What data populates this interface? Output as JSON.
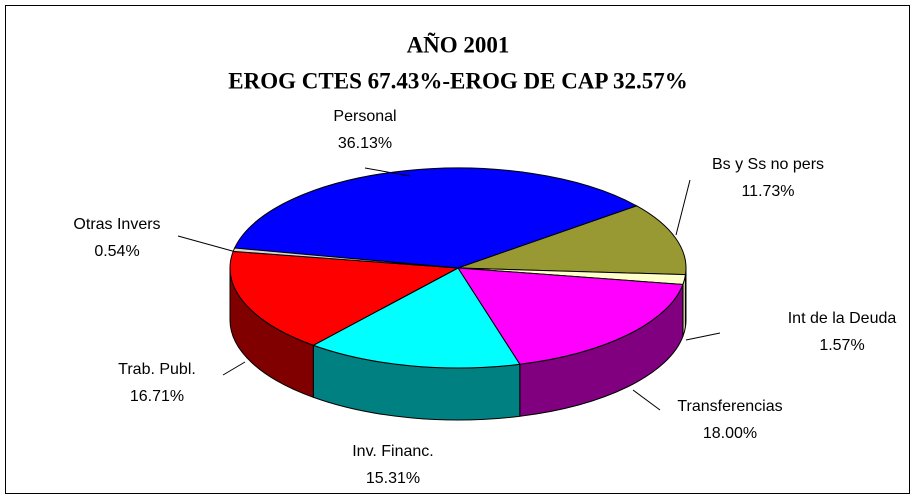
{
  "chart_data": {
    "type": "pie3d",
    "title": "AÑO 2001",
    "subtitle": "EROG CTES 67.43%-EROG DE CAP 32.57%",
    "categories": [
      "Personal",
      "Bs y Ss no pers",
      "Int de la Deuda",
      "Transferencias",
      "Inv. Financ.",
      "Trab. Publ.",
      "Otras Invers"
    ],
    "values": [
      36.13,
      11.73,
      1.57,
      18.0,
      15.31,
      16.71,
      0.54
    ],
    "value_labels": [
      "36.13%",
      "11.73%",
      "1.57%",
      "18.00%",
      "15.31%",
      "16.71%",
      "0.54%"
    ],
    "colors": [
      "#0000ff",
      "#999933",
      "#ffffcc",
      "#ff00ff",
      "#00ffff",
      "#ff0000",
      "#d9d9d9"
    ],
    "side_colors": [
      "#000080",
      "#666622",
      "#cccc99",
      "#800080",
      "#008080",
      "#800000",
      "#999999"
    ]
  }
}
